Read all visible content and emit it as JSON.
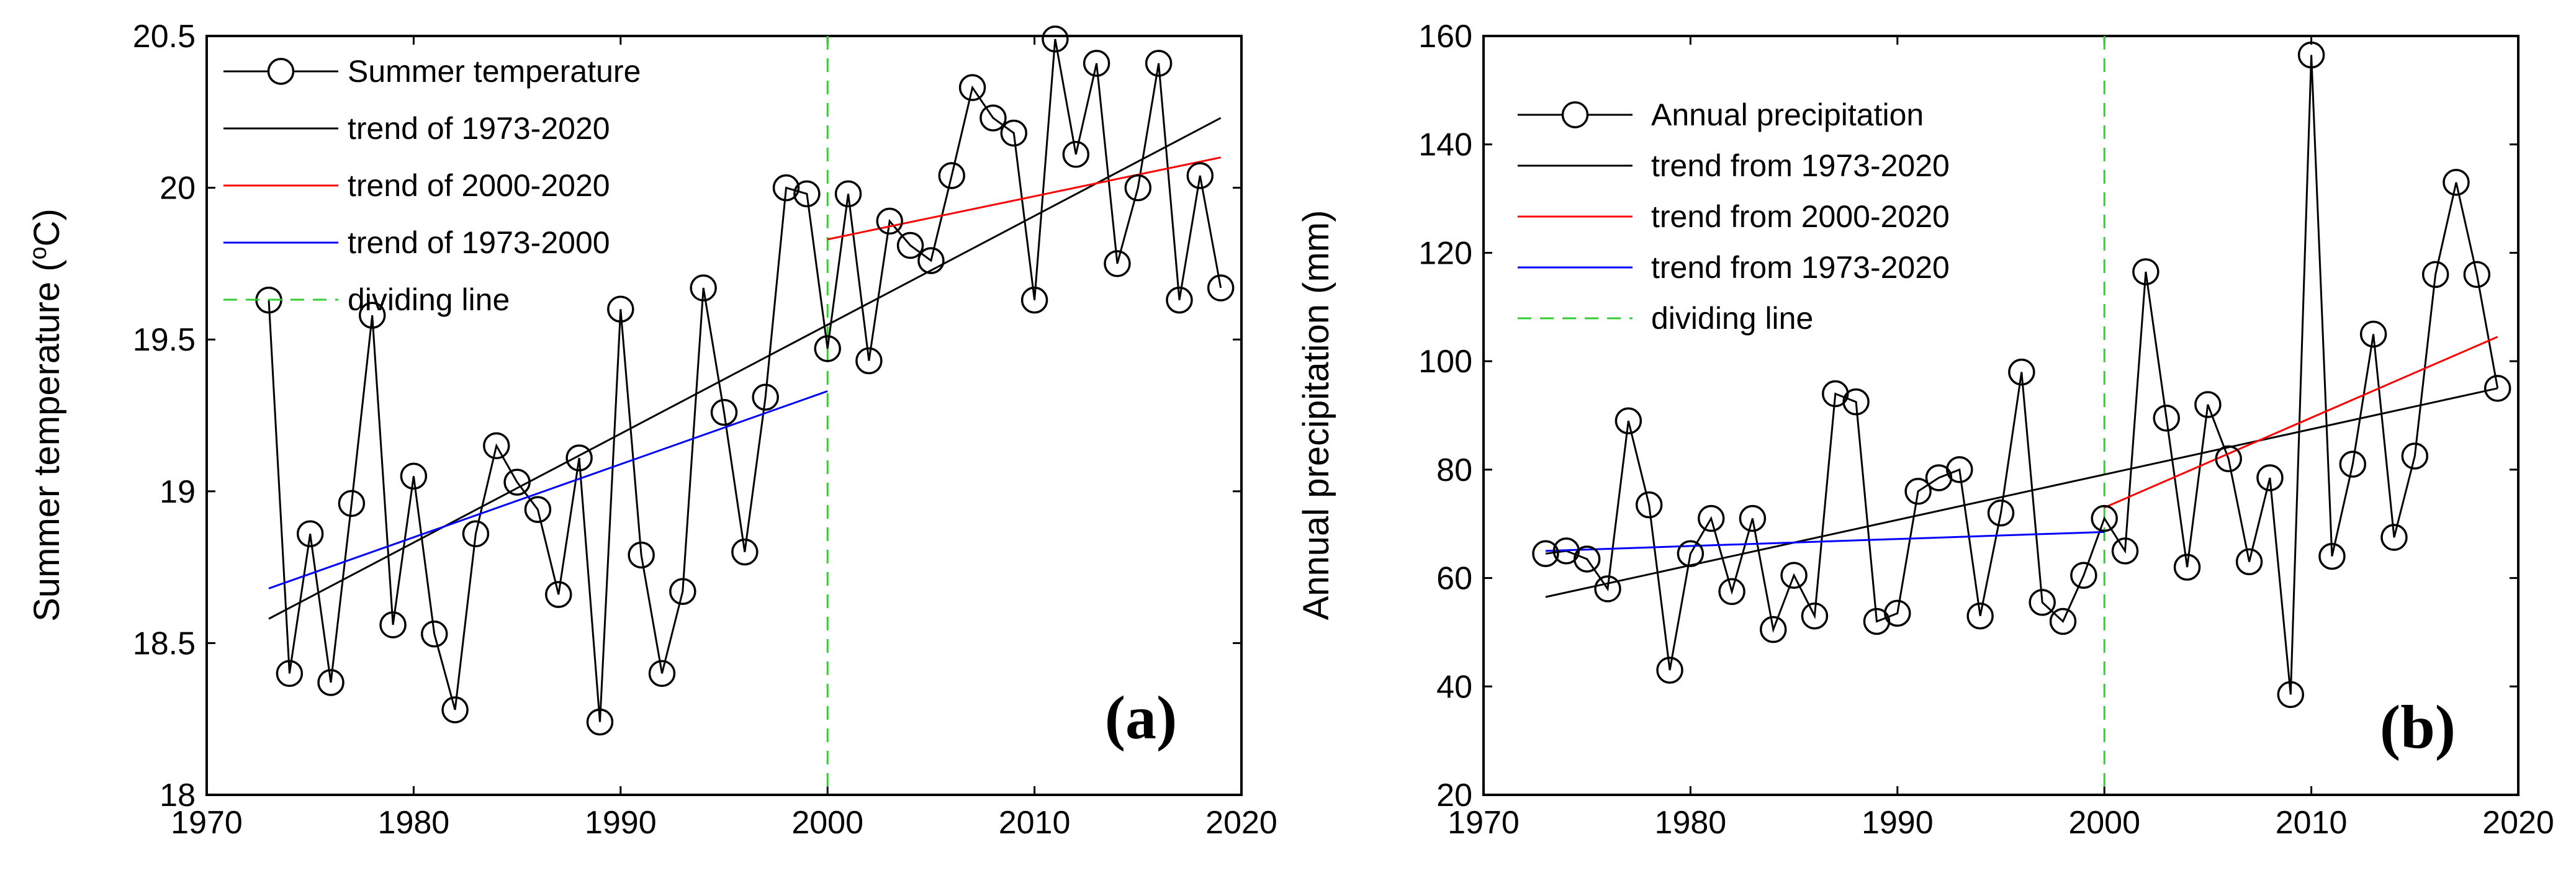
{
  "chart_data": [
    {
      "type": "line",
      "panel_label": "(a)",
      "ylabel": "Summer temperature (°C)",
      "ylabel_parts": {
        "before": "Summer temperature (",
        "sup": "o",
        "after": "C)"
      },
      "xlim": [
        1970,
        2020
      ],
      "ylim": [
        18,
        20.5
      ],
      "xticks": [
        1970,
        1980,
        1990,
        2000,
        2010,
        2020
      ],
      "yticks": [
        18,
        18.5,
        19,
        19.5,
        20,
        20.5
      ],
      "ytick_labels": [
        "18",
        "18.5",
        "19",
        "19.5",
        "20",
        "20.5"
      ],
      "series": {
        "name": "Summer temperature",
        "x": [
          1973,
          1974,
          1975,
          1976,
          1977,
          1978,
          1979,
          1980,
          1981,
          1982,
          1983,
          1984,
          1985,
          1986,
          1987,
          1988,
          1989,
          1990,
          1991,
          1992,
          1993,
          1994,
          1995,
          1996,
          1997,
          1998,
          1999,
          2000,
          2001,
          2002,
          2003,
          2004,
          2005,
          2006,
          2007,
          2008,
          2009,
          2010,
          2011,
          2012,
          2013,
          2014,
          2015,
          2016,
          2017,
          2018,
          2019
        ],
        "y": [
          19.63,
          18.4,
          18.86,
          18.37,
          18.96,
          19.58,
          18.56,
          19.05,
          18.53,
          18.28,
          18.86,
          19.15,
          19.03,
          18.94,
          18.66,
          19.11,
          18.24,
          19.6,
          18.79,
          18.4,
          18.67,
          19.67,
          19.26,
          18.8,
          19.31,
          20.0,
          19.98,
          19.47,
          19.98,
          19.43,
          19.89,
          19.81,
          19.76,
          20.04,
          20.33,
          20.23,
          20.18,
          19.63,
          20.49,
          20.11,
          20.41,
          19.75,
          20.0,
          20.41,
          19.63,
          20.04,
          19.67
        ]
      },
      "trends": [
        {
          "name": "trend of 1973-2020",
          "color": "#000000",
          "x": [
            1973,
            2019
          ],
          "y": [
            18.58,
            20.23
          ]
        },
        {
          "name": "trend of 2000-2020",
          "color": "#ff0000",
          "x": [
            2000,
            2019
          ],
          "y": [
            19.83,
            20.1
          ]
        },
        {
          "name": "trend of 1973-2000",
          "color": "#0000ff",
          "x": [
            1973,
            2000
          ],
          "y": [
            18.68,
            19.33
          ]
        }
      ],
      "dividing_line": {
        "name": "dividing line",
        "x": 2000,
        "color": "#33cc33"
      },
      "legend": {
        "placement": "top-left",
        "entries": [
          "Summer temperature",
          "trend of 1973-2020",
          "trend of 2000-2020",
          "trend of 1973-2000",
          "dividing line"
        ]
      }
    },
    {
      "type": "line",
      "panel_label": "(b)",
      "ylabel": "Annual precipitation (mm)",
      "xlim": [
        1970,
        2020
      ],
      "ylim": [
        20,
        160
      ],
      "xticks": [
        1970,
        1980,
        1990,
        2000,
        2010,
        2020
      ],
      "yticks": [
        20,
        40,
        60,
        80,
        100,
        120,
        140,
        160
      ],
      "ytick_labels": [
        "20",
        "40",
        "60",
        "80",
        "100",
        "120",
        "140",
        "160"
      ],
      "series": {
        "name": "Annual precipitation",
        "x": [
          1973,
          1974,
          1975,
          1976,
          1977,
          1978,
          1979,
          1980,
          1981,
          1982,
          1983,
          1984,
          1985,
          1986,
          1987,
          1988,
          1989,
          1990,
          1991,
          1992,
          1993,
          1994,
          1995,
          1996,
          1997,
          1998,
          1999,
          2000,
          2001,
          2002,
          2003,
          2004,
          2005,
          2006,
          2007,
          2008,
          2009,
          2010,
          2011,
          2012,
          2013,
          2014,
          2015,
          2016,
          2017,
          2018,
          2019
        ],
        "y": [
          64.5,
          65.0,
          63.5,
          58.0,
          89.0,
          73.5,
          43.0,
          64.5,
          71.0,
          57.5,
          71.0,
          50.5,
          60.5,
          53.0,
          94.0,
          92.5,
          52.0,
          53.5,
          76.0,
          78.5,
          80.0,
          53.0,
          72.0,
          98.0,
          55.5,
          52.0,
          60.5,
          71.0,
          65.0,
          116.5,
          89.5,
          62.0,
          92.0,
          82.0,
          63.0,
          78.5,
          38.5,
          156.5,
          64.0,
          81.0,
          105.0,
          67.5,
          82.5,
          116.0,
          133.0,
          116.0,
          95.0
        ]
      },
      "trends": [
        {
          "name": "trend from 1973-2020",
          "color": "#000000",
          "x": [
            1973,
            2019
          ],
          "y": [
            56.5,
            95.0
          ]
        },
        {
          "name": "trend from 2000-2020",
          "color": "#ff0000",
          "x": [
            2000,
            2019
          ],
          "y": [
            73.0,
            104.5
          ]
        },
        {
          "name": "trend from 1973-2020",
          "color": "#0000ff",
          "x": [
            1973,
            2000
          ],
          "y": [
            65.0,
            68.5
          ]
        }
      ],
      "dividing_line": {
        "name": "dividing line",
        "x": 2000,
        "color": "#33cc33"
      },
      "legend": {
        "placement": "top-left",
        "entries": [
          "Annual precipitation",
          "trend from 1973-2020",
          "trend from 2000-2020",
          "trend from 1973-2020",
          "dividing line"
        ]
      }
    }
  ]
}
